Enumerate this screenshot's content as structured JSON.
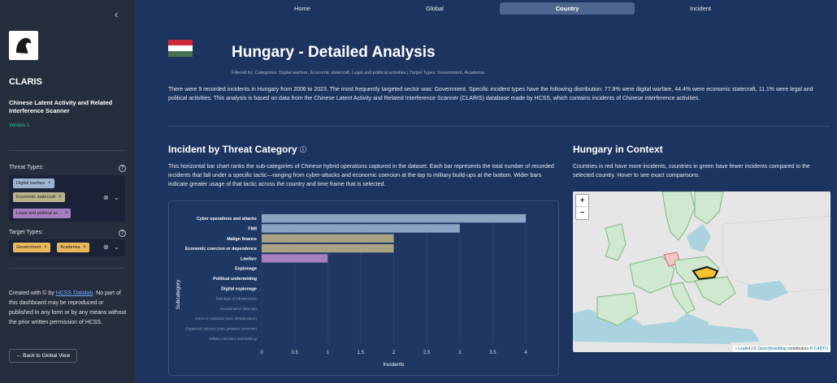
{
  "sidebar": {
    "collapse_icon": "‹",
    "app_title": "CLARIS",
    "app_subtitle": "Chinese Latent Activity and Related Interference Scanner",
    "version": "Version 1",
    "threat_label": "Threat Types:",
    "threat_tags": [
      "Digital warfare",
      "Economic statecraft",
      "Legal and political ac..."
    ],
    "target_label": "Target Types:",
    "target_tags": [
      "Government",
      "Academia"
    ],
    "footer_prefix": "Created with © by ",
    "footer_link": "HCSS Datalab",
    "footer_suffix": ". No part of this dashboard may be reproduced or published in any form or by any means without the prior written permission of HCSS.",
    "back_button": "← Back to Global View"
  },
  "nav": {
    "tabs": [
      "Home",
      "Global",
      "Country",
      "Incident"
    ],
    "active": "Country"
  },
  "header": {
    "title": "Hungary - Detailed Analysis",
    "filtered": "Filtered by: Categories: Digital warfare, Economic statecraft, Legal and political activities | Target Types: Government, Academia",
    "summary": "There were 9 recorded incidents in Hungary from 2006 to 2023. The most frequently targeted sector was: Government. Specific incident types have the following distribution: 77.8% were digital warfare, 44.4% were economic statecraft, 11.1% were legal and political activities. This analysis is based on data from the Chinese Latent Activity and Related Interference Scanner (CLARIS) database made by HCSS, which contains incidents of Chinese interference activities."
  },
  "threat_section": {
    "title": "Incident by Threat Category",
    "description": "This horizontal bar chart ranks the sub-categories of Chinese hybrid operations captured in the dataset. Each bar represents the total number of recorded incidents that fall under a specific tactic—ranging from cyber-attacks and economic coercion at the top to military build-ups at the bottom. Wider bars indicate greater usage of that tactic across the country and time frame that is selected."
  },
  "context_section": {
    "title": "Hungary in Context",
    "description": "Countries in red have more incidents, countries in green have fewer incidents compared to the selected country. Hover to see exact comparisons.",
    "zoom_in": "+",
    "zoom_out": "−",
    "attr_leaflet": "Leaflet",
    "attr_sep": " | © ",
    "attr_osm": "OpenStreetMap",
    "attr_mid": " contributors © ",
    "attr_carto": "CARTO"
  },
  "colors": {
    "background": "#1d3461",
    "sidebar": "#262d3d",
    "tag_threat_blue": "#9fb4cf",
    "tag_threat_tan": "#b9b38d",
    "tag_threat_purple": "#a57fc0",
    "tag_target": "#e8b85a",
    "bar_digital": "#8ea4c4",
    "bar_economic": "#a9a383",
    "bar_legal": "#a57fc0"
  },
  "chart_data": {
    "type": "bar",
    "orientation": "horizontal",
    "title": "",
    "xlabel": "Incidents",
    "ylabel": "Subcategory",
    "xlim": [
      0,
      4
    ],
    "xticks": [
      "0",
      "0.5",
      "1",
      "1.5",
      "2",
      "2.5",
      "3",
      "3.5",
      "4"
    ],
    "categories": [
      "Cyber operations and attacks",
      "FIMI",
      "Malign finance",
      "Economic coercion or dependence",
      "Lawfare",
      "Espionage",
      "Political undermining",
      "Digital espionage",
      "Sabotage of infrastructure",
      "Assassination (attempt)",
      "Arson or explosion (excl. infrastructure)",
      "Organized violence (riots, protests, terrorism)",
      "Military exercises and build up"
    ],
    "values": [
      4,
      3,
      2,
      2,
      1,
      0,
      0,
      0,
      0,
      0,
      0,
      0,
      0
    ],
    "bar_colors": [
      "#8ea4c4",
      "#8ea4c4",
      "#a9a383",
      "#a9a383",
      "#a57fc0",
      "",
      "",
      "",
      "",
      "",
      "",
      "",
      ""
    ],
    "bold_labels": [
      true,
      true,
      true,
      true,
      true,
      true,
      true,
      true,
      false,
      false,
      false,
      false,
      false
    ],
    "grid": true
  }
}
